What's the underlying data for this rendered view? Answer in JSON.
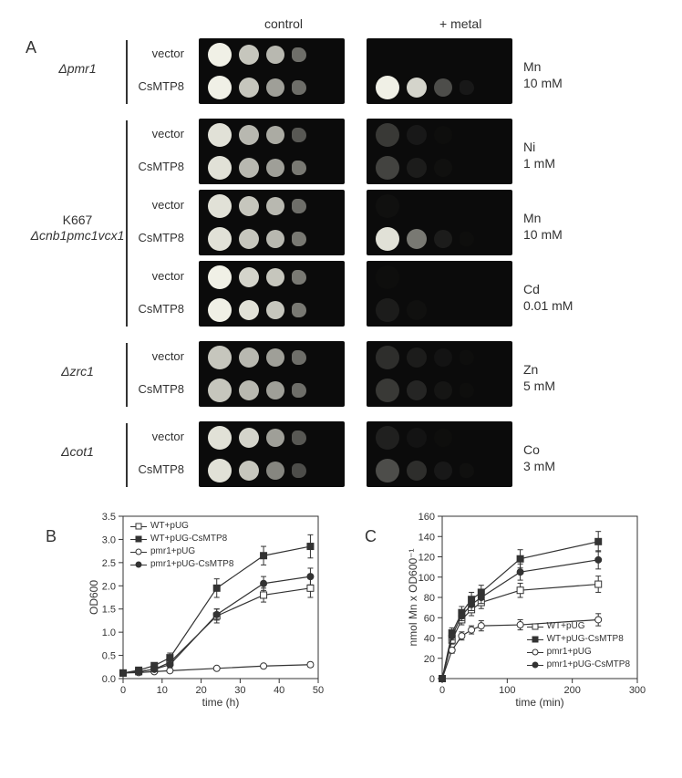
{
  "panelA": {
    "label": "A",
    "column_headers": {
      "control": "control",
      "metal": "+ metal"
    },
    "row_labels": {
      "vector": "vector",
      "construct": "CsMTP8"
    },
    "strains": [
      {
        "name": "Δpmr1",
        "conditions": [
          {
            "metal": "Mn",
            "conc": "10 mM",
            "control_vector_spots": [
              1.0,
              0.85,
              0.8,
              0.5
            ],
            "control_construct_spots": [
              1.0,
              0.85,
              0.7,
              0.5
            ],
            "metal_vector_spots": [
              0.0,
              0.0,
              0.0,
              0.0
            ],
            "metal_construct_spots": [
              1.0,
              0.9,
              0.35,
              0.08
            ]
          }
        ]
      },
      {
        "name": "K667\nΔcnb1pmc1vcx1",
        "conditions": [
          {
            "metal": "Ni",
            "conc": "1 mM",
            "control_vector_spots": [
              0.95,
              0.8,
              0.75,
              0.4
            ],
            "control_construct_spots": [
              0.95,
              0.8,
              0.7,
              0.55
            ],
            "metal_vector_spots": [
              0.25,
              0.08,
              0.02,
              0.0
            ],
            "metal_construct_spots": [
              0.3,
              0.1,
              0.03,
              0.0
            ]
          },
          {
            "metal": "Mn",
            "conc": "10 mM",
            "control_vector_spots": [
              0.95,
              0.85,
              0.8,
              0.5
            ],
            "control_construct_spots": [
              0.95,
              0.85,
              0.8,
              0.55
            ],
            "metal_vector_spots": [
              0.03,
              0.0,
              0.0,
              0.0
            ],
            "metal_construct_spots": [
              0.95,
              0.55,
              0.1,
              0.02
            ]
          },
          {
            "metal": "Cd",
            "conc": "0.01 mM",
            "control_vector_spots": [
              1.0,
              0.9,
              0.85,
              0.55
            ],
            "control_construct_spots": [
              1.0,
              0.95,
              0.85,
              0.55
            ],
            "metal_vector_spots": [
              0.02,
              0.0,
              0.0,
              0.0
            ],
            "metal_construct_spots": [
              0.1,
              0.03,
              0.0,
              0.0
            ]
          }
        ]
      },
      {
        "name": "Δzrc1",
        "conditions": [
          {
            "metal": "Zn",
            "conc": "5 mM",
            "control_vector_spots": [
              0.85,
              0.8,
              0.7,
              0.5
            ],
            "control_construct_spots": [
              0.85,
              0.8,
              0.7,
              0.5
            ],
            "metal_vector_spots": [
              0.2,
              0.1,
              0.05,
              0.02
            ],
            "metal_construct_spots": [
              0.25,
              0.15,
              0.06,
              0.02
            ]
          }
        ]
      },
      {
        "name": "Δcot1",
        "conditions": [
          {
            "metal": "Co",
            "conc": "3 mM",
            "control_vector_spots": [
              0.95,
              0.9,
              0.7,
              0.4
            ],
            "control_construct_spots": [
              0.95,
              0.85,
              0.6,
              0.35
            ],
            "metal_vector_spots": [
              0.12,
              0.05,
              0.02,
              0.0
            ],
            "metal_construct_spots": [
              0.35,
              0.2,
              0.08,
              0.03
            ]
          }
        ]
      }
    ],
    "spot_base_diameters": [
      26,
      22,
      20,
      16
    ],
    "plate_bg": "#0b0b0b",
    "spot_color": "#e8e8e0"
  },
  "panelB": {
    "label": "B",
    "type": "line-scatter",
    "x_label": "time (h)",
    "y_label": "OD600",
    "xlim": [
      0,
      50
    ],
    "xtick_step": 10,
    "ylim": [
      0,
      3.5
    ],
    "ytick_step": 0.5,
    "y_decimals": 1,
    "marker_size": 7,
    "series": [
      {
        "name": "WT+pUG",
        "marker": "sq-open",
        "x": [
          0,
          4,
          8,
          12,
          24,
          36,
          48
        ],
        "y": [
          0.12,
          0.15,
          0.2,
          0.35,
          1.35,
          1.8,
          1.95
        ],
        "err": [
          0.03,
          0.04,
          0.05,
          0.08,
          0.15,
          0.15,
          0.2
        ]
      },
      {
        "name": "WT+pUG-CsMTP8",
        "marker": "sq-filled",
        "x": [
          0,
          4,
          8,
          12,
          24,
          36,
          48
        ],
        "y": [
          0.12,
          0.18,
          0.28,
          0.45,
          1.95,
          2.65,
          2.85
        ],
        "err": [
          0.03,
          0.04,
          0.06,
          0.1,
          0.2,
          0.2,
          0.25
        ]
      },
      {
        "name": "pmr1+pUG",
        "marker": "ci-open",
        "x": [
          0,
          4,
          8,
          12,
          24,
          36,
          48
        ],
        "y": [
          0.12,
          0.13,
          0.15,
          0.17,
          0.22,
          0.27,
          0.3
        ],
        "err": [
          0.02,
          0.02,
          0.02,
          0.03,
          0.03,
          0.04,
          0.05
        ]
      },
      {
        "name": "pmr1+pUG-CsMTP8",
        "marker": "ci-filled",
        "x": [
          0,
          4,
          8,
          12,
          24,
          36,
          48
        ],
        "y": [
          0.12,
          0.15,
          0.2,
          0.3,
          1.38,
          2.05,
          2.2
        ],
        "err": [
          0.02,
          0.03,
          0.04,
          0.06,
          0.12,
          0.15,
          0.18
        ]
      }
    ],
    "legend_pos": "top-left"
  },
  "panelC": {
    "label": "C",
    "type": "line-scatter",
    "x_label": "time (min)",
    "y_label": "nmol Mn x OD600⁻¹",
    "xlim": [
      0,
      300
    ],
    "xtick_step": 100,
    "ylim": [
      0,
      160
    ],
    "ytick_step": 20,
    "y_decimals": 0,
    "marker_size": 7,
    "series": [
      {
        "name": "WT+pUG",
        "marker": "sq-open",
        "x": [
          0,
          15,
          30,
          45,
          60,
          120,
          240
        ],
        "y": [
          0,
          38,
          58,
          68,
          75,
          87,
          93
        ],
        "err": [
          0,
          4,
          5,
          6,
          6,
          7,
          8
        ]
      },
      {
        "name": "WT+pUG-CsMTP8",
        "marker": "sq-filled",
        "x": [
          0,
          15,
          30,
          45,
          60,
          120,
          240
        ],
        "y": [
          0,
          45,
          65,
          78,
          85,
          118,
          135
        ],
        "err": [
          0,
          5,
          6,
          7,
          7,
          9,
          10
        ]
      },
      {
        "name": "pmr1+pUG",
        "marker": "ci-open",
        "x": [
          0,
          15,
          30,
          45,
          60,
          120,
          240
        ],
        "y": [
          0,
          28,
          42,
          48,
          52,
          53,
          58
        ],
        "err": [
          0,
          3,
          4,
          4,
          5,
          5,
          6
        ]
      },
      {
        "name": "pmr1+pUG-CsMTP8",
        "marker": "ci-filled",
        "x": [
          0,
          15,
          30,
          45,
          60,
          120,
          240
        ],
        "y": [
          0,
          42,
          62,
          73,
          80,
          105,
          117
        ],
        "err": [
          0,
          4,
          5,
          6,
          6,
          8,
          9
        ]
      }
    ],
    "legend_pos": "bottom-right"
  },
  "colors": {
    "axis": "#333333",
    "text": "#333333",
    "background": "#ffffff",
    "line": "#333333"
  }
}
